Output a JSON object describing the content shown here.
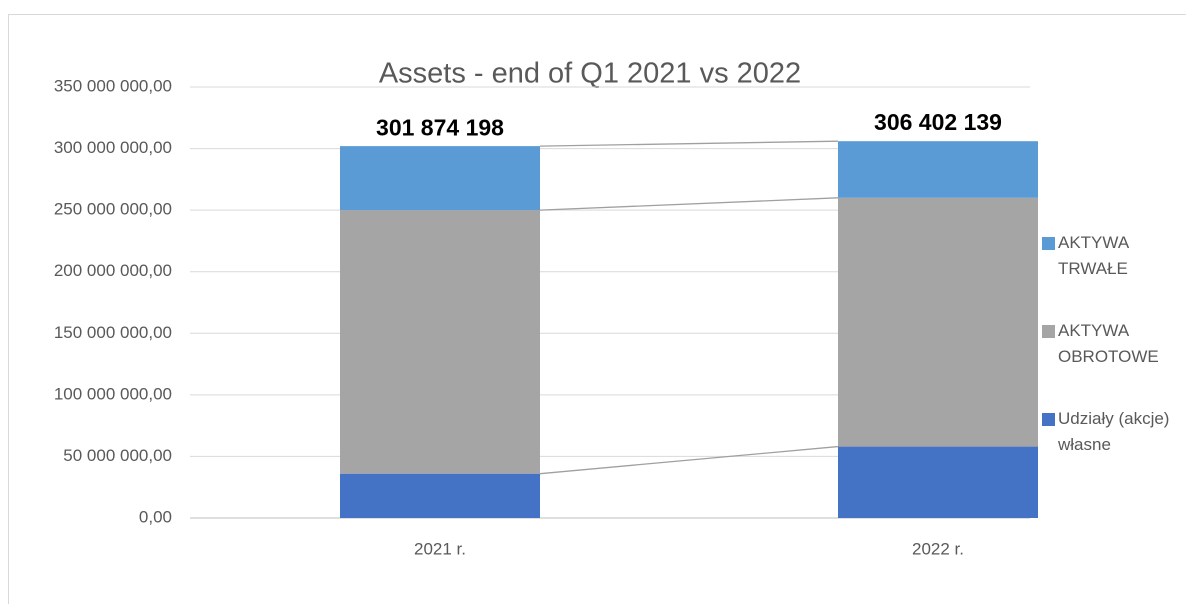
{
  "chart_data": {
    "type": "stacked_bar",
    "title": "Assets - end of Q1 2021 vs 2022",
    "categories": [
      "2021 r.",
      "2022 r."
    ],
    "series": [
      {
        "name": "Udziały (akcje) własne",
        "color": "#4472c4",
        "values": [
          36000000,
          58000000
        ]
      },
      {
        "name": "AKTYWA OBROTOWE",
        "color": "#a5a5a5",
        "values": [
          214000000,
          202000000
        ]
      },
      {
        "name": "AKTYWA TRWAŁE",
        "color": "#5b9bd5",
        "values": [
          52000000,
          46000000
        ]
      }
    ],
    "totals": [
      301874198,
      306402139
    ],
    "total_labels": [
      "301 874 198",
      "306 402 139"
    ],
    "ylim": [
      0,
      350000000
    ],
    "yticks": [
      {
        "value": 0,
        "label": "0,00"
      },
      {
        "value": 50000000,
        "label": "50 000 000,00"
      },
      {
        "value": 100000000,
        "label": "100 000 000,00"
      },
      {
        "value": 150000000,
        "label": "150 000 000,00"
      },
      {
        "value": 200000000,
        "label": "200 000 000,00"
      },
      {
        "value": 250000000,
        "label": "250 000 000,00"
      },
      {
        "value": 300000000,
        "label": "300 000 000,00"
      },
      {
        "value": 350000000,
        "label": "350 000 000,00"
      }
    ],
    "grid": true,
    "series_lines": true,
    "legend": "right"
  }
}
